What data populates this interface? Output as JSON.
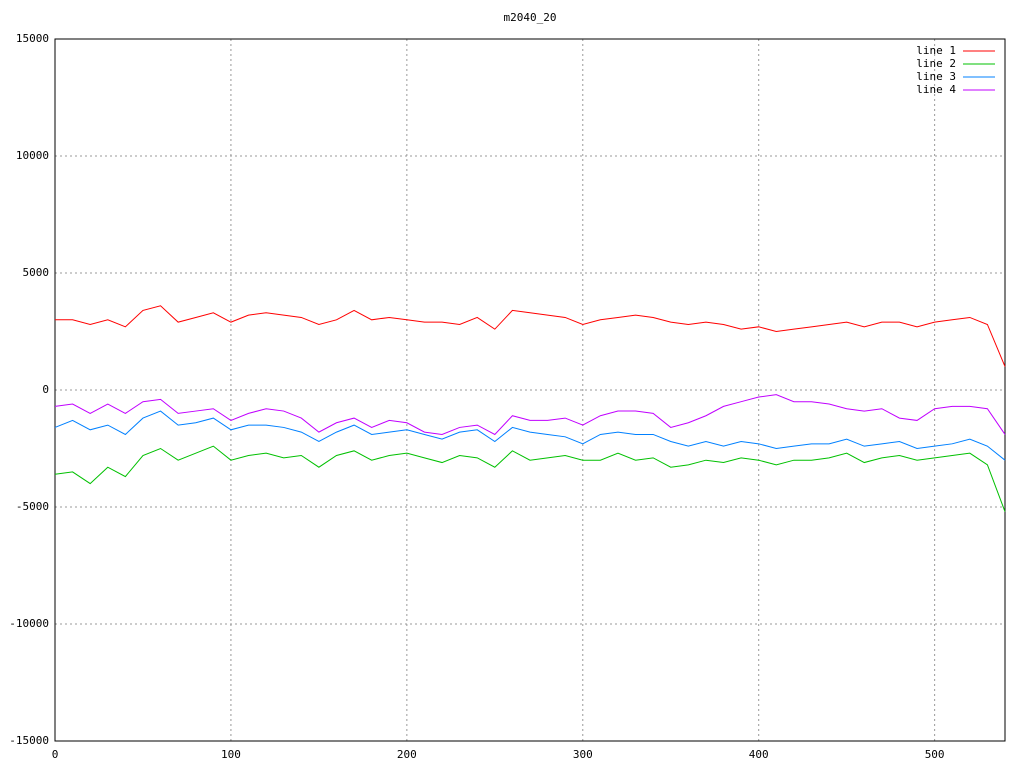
{
  "chart_data": {
    "type": "line",
    "title": "m2040_20",
    "x": [
      0,
      10,
      20,
      30,
      40,
      50,
      60,
      70,
      80,
      90,
      100,
      110,
      120,
      130,
      140,
      150,
      160,
      170,
      180,
      190,
      200,
      210,
      220,
      230,
      240,
      250,
      260,
      270,
      280,
      290,
      300,
      310,
      320,
      330,
      340,
      350,
      360,
      370,
      380,
      390,
      400,
      410,
      420,
      430,
      440,
      450,
      460,
      470,
      480,
      490,
      500,
      510,
      520,
      530,
      540
    ],
    "series": [
      {
        "name": "line 1",
        "color": "#ff0000",
        "values": [
          3000,
          3000,
          2800,
          3000,
          2700,
          3400,
          3600,
          2900,
          3100,
          3300,
          2900,
          3200,
          3300,
          3200,
          3100,
          2800,
          3000,
          3400,
          3000,
          3100,
          3000,
          2900,
          2900,
          2800,
          3100,
          2600,
          3400,
          3300,
          3200,
          3100,
          2800,
          3000,
          3100,
          3200,
          3100,
          2900,
          2800,
          2900,
          2800,
          2600,
          2700,
          2500,
          2600,
          2700,
          2800,
          2900,
          2700,
          2900,
          2900,
          2700,
          2900,
          3000,
          3100,
          2800,
          1000
        ]
      },
      {
        "name": "line 2",
        "color": "#00c000",
        "values": [
          -3600,
          -3500,
          -4000,
          -3300,
          -3700,
          -2800,
          -2500,
          -3000,
          -2700,
          -2400,
          -3000,
          -2800,
          -2700,
          -2900,
          -2800,
          -3300,
          -2800,
          -2600,
          -3000,
          -2800,
          -2700,
          -2900,
          -3100,
          -2800,
          -2900,
          -3300,
          -2600,
          -3000,
          -2900,
          -2800,
          -3000,
          -3000,
          -2700,
          -3000,
          -2900,
          -3300,
          -3200,
          -3000,
          -3100,
          -2900,
          -3000,
          -3200,
          -3000,
          -3000,
          -2900,
          -2700,
          -3100,
          -2900,
          -2800,
          -3000,
          -2900,
          -2800,
          -2700,
          -3200,
          -5200
        ]
      },
      {
        "name": "line 3",
        "color": "#0080ff",
        "values": [
          -1600,
          -1300,
          -1700,
          -1500,
          -1900,
          -1200,
          -900,
          -1500,
          -1400,
          -1200,
          -1700,
          -1500,
          -1500,
          -1600,
          -1800,
          -2200,
          -1800,
          -1500,
          -1900,
          -1800,
          -1700,
          -1900,
          -2100,
          -1800,
          -1700,
          -2200,
          -1600,
          -1800,
          -1900,
          -2000,
          -2300,
          -1900,
          -1800,
          -1900,
          -1900,
          -2200,
          -2400,
          -2200,
          -2400,
          -2200,
          -2300,
          -2500,
          -2400,
          -2300,
          -2300,
          -2100,
          -2400,
          -2300,
          -2200,
          -2500,
          -2400,
          -2300,
          -2100,
          -2400,
          -3000
        ]
      },
      {
        "name": "line 4",
        "color": "#c000ff",
        "values": [
          -700,
          -600,
          -1000,
          -600,
          -1000,
          -500,
          -400,
          -1000,
          -900,
          -800,
          -1300,
          -1000,
          -800,
          -900,
          -1200,
          -1800,
          -1400,
          -1200,
          -1600,
          -1300,
          -1400,
          -1800,
          -1900,
          -1600,
          -1500,
          -1900,
          -1100,
          -1300,
          -1300,
          -1200,
          -1500,
          -1100,
          -900,
          -900,
          -1000,
          -1600,
          -1400,
          -1100,
          -700,
          -500,
          -300,
          -200,
          -500,
          -500,
          -600,
          -800,
          -900,
          -800,
          -1200,
          -1300,
          -800,
          -700,
          -700,
          -800,
          -1900
        ]
      }
    ],
    "xlim": [
      0,
      540
    ],
    "xticks": [
      0,
      100,
      200,
      300,
      400,
      500
    ],
    "ylim": [
      -15000,
      15000
    ],
    "yticks": [
      -15000,
      -10000,
      -5000,
      0,
      5000,
      10000,
      15000
    ],
    "grid": true,
    "legend": "top-right"
  }
}
